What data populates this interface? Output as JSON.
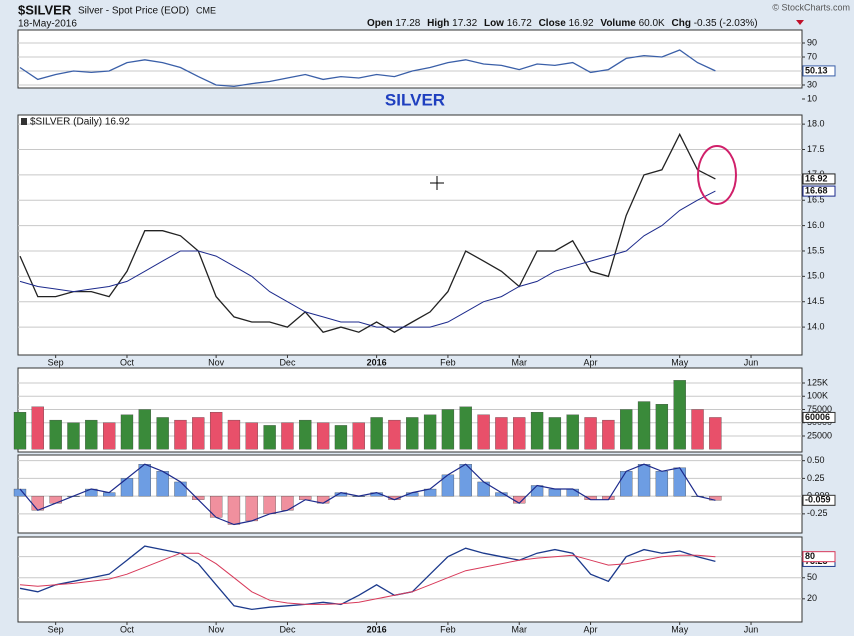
{
  "header": {
    "symbol": "$SILVER",
    "description": "Silver - Spot Price (EOD)",
    "exchange": "CME",
    "date": "18-May-2016",
    "quote": [
      {
        "label": "Open",
        "value": "17.28"
      },
      {
        "label": "High",
        "value": "17.32"
      },
      {
        "label": "Low",
        "value": "16.72"
      },
      {
        "label": "Close",
        "value": "16.92"
      },
      {
        "label": "Volume",
        "value": "60.0K"
      },
      {
        "label": "Chg",
        "value": "-0.35 (-2.03%)"
      }
    ],
    "credit": "© StockCharts.com"
  },
  "chart_data": [
    {
      "type": "line",
      "series": [
        {
          "color": "#3a5fa8",
          "values": [
            55,
            38,
            45,
            50,
            48,
            50,
            62,
            66,
            62,
            55,
            42,
            30,
            28,
            32,
            35,
            40,
            45,
            38,
            42,
            40,
            45,
            42,
            50,
            55,
            62,
            66,
            60,
            58,
            52,
            60,
            58,
            62,
            48,
            52,
            68,
            72,
            70,
            80,
            62,
            50.13,
            null,
            null,
            null,
            null,
            null
          ]
        }
      ],
      "ylim": [
        10,
        108
      ],
      "yticks": [
        10,
        30,
        50,
        70,
        90
      ]
    },
    {
      "type": "line",
      "title": "SILVER",
      "legend": "$SILVER (Daily) 16.92",
      "categories": [
        null,
        null,
        "Sep",
        null,
        null,
        null,
        "Oct",
        null,
        null,
        null,
        null,
        "Nov",
        null,
        null,
        null,
        "Dec",
        null,
        null,
        null,
        null,
        "2016",
        null,
        null,
        null,
        "Feb",
        null,
        null,
        null,
        "Mar",
        null,
        null,
        null,
        "Apr",
        null,
        null,
        null,
        null,
        "May",
        null,
        null,
        null,
        "Jun",
        null,
        null,
        null
      ],
      "series": [
        {
          "color": "#222222",
          "values": [
            15.4,
            14.6,
            14.6,
            14.7,
            14.7,
            14.6,
            15.1,
            15.9,
            15.9,
            15.8,
            15.5,
            14.6,
            14.2,
            14.1,
            14.1,
            14.0,
            14.3,
            13.9,
            14.0,
            13.9,
            14.1,
            13.9,
            14.1,
            14.3,
            14.7,
            15.5,
            15.3,
            15.1,
            14.8,
            15.5,
            15.5,
            15.7,
            15.1,
            15.0,
            16.2,
            17.0,
            17.1,
            17.8,
            17.1,
            16.92,
            null,
            null,
            null,
            null,
            null
          ]
        },
        {
          "color": "#1c2a8c",
          "values": [
            14.9,
            14.8,
            14.75,
            14.7,
            14.75,
            14.8,
            14.9,
            15.1,
            15.3,
            15.5,
            15.5,
            15.4,
            15.2,
            15.0,
            14.7,
            14.5,
            14.3,
            14.2,
            14.1,
            14.1,
            14.0,
            14.0,
            14.0,
            14.0,
            14.1,
            14.3,
            14.5,
            14.6,
            14.8,
            14.9,
            15.1,
            15.2,
            15.3,
            15.4,
            15.5,
            15.8,
            16.0,
            16.3,
            16.5,
            16.68,
            null,
            null,
            null,
            null,
            null
          ]
        }
      ],
      "ylim": [
        13.45,
        18.18
      ],
      "yticks": [
        {
          "value": 14,
          "label": "14.0"
        },
        14.5,
        {
          "value": 15,
          "label": "15.0"
        },
        15.5,
        {
          "value": 16,
          "label": "16.0"
        },
        16.5,
        {
          "value": 17,
          "label": "17.0"
        },
        17.5,
        {
          "value": 18,
          "label": "18.0"
        }
      ]
    },
    {
      "type": "bar",
      "up_color": "#3a8a3a",
      "down_color": "#e8506a",
      "values": [
        70000,
        80000,
        55000,
        50000,
        55000,
        50000,
        65000,
        75000,
        60000,
        55000,
        60000,
        70000,
        55000,
        50000,
        45000,
        50000,
        55000,
        50000,
        45000,
        50000,
        60000,
        55000,
        60000,
        65000,
        75000,
        80000,
        65000,
        60000,
        60000,
        70000,
        60000,
        65000,
        60000,
        55000,
        75000,
        90000,
        85000,
        130000,
        75000,
        60006,
        null,
        null,
        null,
        null,
        null
      ],
      "ylim": [
        -5200,
        153300
      ],
      "yticks": [
        25000,
        50000,
        75000,
        {
          "value": 100000,
          "label": "100K"
        },
        {
          "value": 125000,
          "label": "125K"
        }
      ]
    },
    {
      "type": "bar",
      "color": "#6d9de3",
      "negative_color": "#f0909e",
      "line_color": "#1c2a8c",
      "values": [
        0.1,
        -0.2,
        -0.1,
        0.0,
        0.1,
        0.05,
        0.25,
        0.45,
        0.35,
        0.2,
        -0.05,
        -0.3,
        -0.4,
        -0.35,
        -0.25,
        -0.2,
        -0.05,
        -0.1,
        0.05,
        0.0,
        0.05,
        -0.05,
        0.05,
        0.1,
        0.3,
        0.45,
        0.2,
        0.05,
        -0.1,
        0.15,
        0.1,
        0.1,
        -0.05,
        -0.05,
        0.35,
        0.45,
        0.35,
        0.4,
        0.0,
        -0.059,
        null,
        null,
        null,
        null,
        null
      ],
      "ylim": [
        -0.52,
        0.58
      ],
      "yticks": [
        -0.25,
        {
          "value": 0,
          "label": "0.000"
        },
        0.25,
        {
          "value": 0.5,
          "label": "0.50"
        }
      ]
    },
    {
      "type": "line",
      "categories": [
        null,
        null,
        "Sep",
        null,
        null,
        null,
        "Oct",
        null,
        null,
        null,
        null,
        "Nov",
        null,
        null,
        null,
        "Dec",
        null,
        null,
        null,
        null,
        "2016",
        null,
        null,
        null,
        "Feb",
        null,
        null,
        null,
        "Mar",
        null,
        null,
        null,
        "Apr",
        null,
        null,
        null,
        null,
        "May",
        null,
        null,
        null,
        "Jun",
        null,
        null,
        null
      ],
      "series": [
        {
          "color": "#1c3a8c",
          "values": [
            35,
            30,
            40,
            45,
            50,
            55,
            75,
            95,
            90,
            85,
            70,
            40,
            10,
            5,
            8,
            10,
            12,
            15,
            12,
            25,
            40,
            25,
            30,
            55,
            80,
            92,
            85,
            80,
            75,
            85,
            90,
            85,
            55,
            45,
            80,
            90,
            85,
            88,
            80,
            73.23,
            null,
            null,
            null,
            null,
            null
          ]
        },
        {
          "color": "#d83a5a",
          "values": [
            40,
            38,
            40,
            42,
            45,
            48,
            55,
            65,
            75,
            85,
            85,
            70,
            50,
            30,
            18,
            14,
            12,
            12,
            13,
            15,
            20,
            25,
            30,
            40,
            50,
            60,
            65,
            70,
            75,
            78,
            80,
            82,
            75,
            68,
            70,
            75,
            80,
            82,
            82,
            80,
            null,
            null,
            null,
            null,
            null
          ]
        }
      ],
      "ylim": [
        -13,
        108
      ],
      "yticks": [
        20,
        50,
        80
      ]
    }
  ]
}
